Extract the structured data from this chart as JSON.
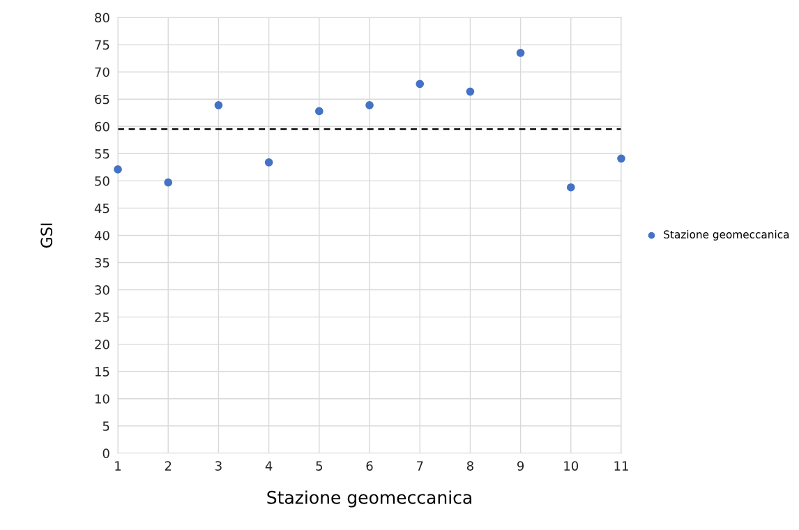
{
  "chart_data": {
    "type": "scatter",
    "xlabel": "Stazione geomeccanica",
    "ylabel": "GSI",
    "x": [
      1,
      2,
      3,
      4,
      5,
      6,
      7,
      8,
      9,
      10,
      11
    ],
    "series": [
      {
        "name": "Stazione geomeccanica",
        "color": "#4472c4",
        "values": [
          52.1,
          49.7,
          63.9,
          53.4,
          62.8,
          63.9,
          67.8,
          66.4,
          73.5,
          48.8,
          54.1
        ]
      }
    ],
    "xlim": [
      1,
      11
    ],
    "xticks": [
      1,
      2,
      3,
      4,
      5,
      6,
      7,
      8,
      9,
      10,
      11
    ],
    "ylim": [
      0,
      80
    ],
    "yticks": [
      0,
      5,
      10,
      15,
      20,
      25,
      30,
      35,
      40,
      45,
      50,
      55,
      60,
      65,
      70,
      75,
      80
    ],
    "ref_lines": [
      {
        "axis": "y",
        "value": 59.5,
        "color": "#000000",
        "line_style": "dashed"
      }
    ],
    "grid": true,
    "legend": "right",
    "marker": "circle"
  }
}
